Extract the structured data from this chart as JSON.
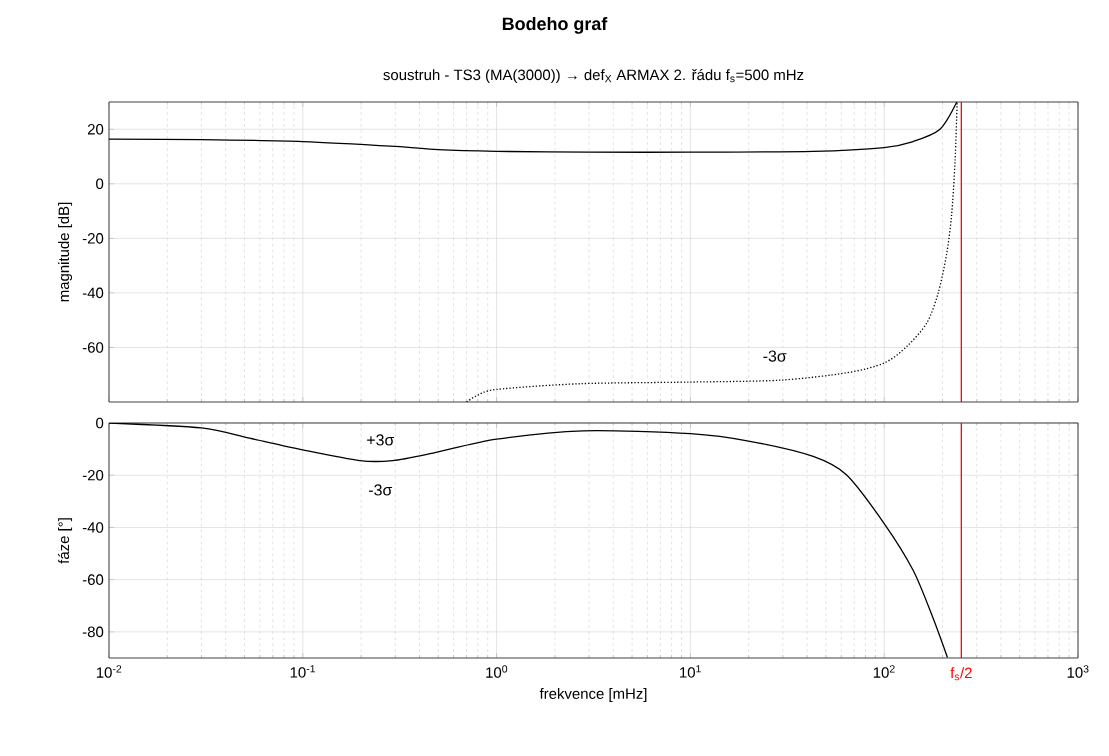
{
  "chart_data": [
    {
      "type": "line",
      "title": "**Bodeho graf**",
      "subtitle": "soustruh - TS3 (MA(3000)) → def$_{X}$ ARMAX 2. řádu f$_{s}$=500 mHz",
      "ylabel": "magnitude [dB]",
      "log": "x",
      "grid": true,
      "tick_labels": "y",
      "xlim": [
        0.01,
        1000
      ],
      "xticks": [
        {
          "value": 0.01,
          "label": null
        },
        {
          "value": 0.1,
          "label": null
        },
        {
          "value": 1,
          "label": null
        },
        {
          "value": 10,
          "label": null
        },
        {
          "value": 100,
          "label": null
        },
        {
          "value": 1000,
          "label": null
        }
      ],
      "ylim": [
        -80,
        30
      ],
      "yticks": [
        -60,
        -40,
        -20,
        0,
        20
      ],
      "ref_lines": [
        {
          "axis": "x",
          "value": 250,
          "color": "#ff0000"
        }
      ],
      "annotations": [
        "-3σ"
      ],
      "series": [
        {
          "color": "#000000",
          "line_style": "solid",
          "x": [
            0.01,
            0.03,
            0.1,
            0.3,
            0.5,
            1,
            3,
            10,
            43,
            100,
            141,
            194,
            237
          ],
          "values": [
            16.4,
            16.2,
            15.5,
            13.7,
            12.5,
            11.9,
            11.6,
            11.6,
            11.9,
            13.3,
            15.5,
            20,
            30
          ]
        },
        {
          "color": "#000000",
          "line_style": "dotted",
          "x": [
            0.7,
            0.79,
            1,
            2.7,
            10,
            29,
            64,
            100,
            131,
            166,
            190,
            210,
            223,
            232,
            238
          ],
          "values": [
            -80,
            -77.7,
            -75.4,
            -73.3,
            -72.7,
            -72,
            -69.3,
            -65.7,
            -59.6,
            -51,
            -40,
            -25.7,
            -11,
            8.2,
            30
          ]
        }
      ]
    },
    {
      "type": "line",
      "xlabel": "frekvence [mHz]",
      "ylabel": "fáze [°]",
      "log": "x",
      "grid": true,
      "xlim": [
        0.01,
        1000
      ],
      "xticks": [
        {
          "value": 0.01,
          "label": "10$^{-2}$"
        },
        {
          "value": 0.1,
          "label": "10$^{-1}$"
        },
        {
          "value": 1,
          "label": "10$^{0}$"
        },
        {
          "value": 10,
          "label": "10$^{1}$"
        },
        {
          "value": 100,
          "label": "10$^{2}$"
        },
        {
          "value": 1000,
          "label": "10$^{3}$"
        }
      ],
      "ylim": [
        -90,
        0
      ],
      "yticks": [
        -80,
        -60,
        -40,
        -20,
        0
      ],
      "ref_lines": [
        {
          "axis": "x",
          "value": 250,
          "color": "#ff0000",
          "label": "f$_{s}$/2"
        }
      ],
      "annotations": [
        "+3σ",
        "-3σ"
      ],
      "series": [
        {
          "color": "#000000",
          "line_style": "solid",
          "x": [
            0.01,
            0.03,
            0.053,
            0.1,
            0.197,
            0.29,
            0.47,
            1,
            2.8,
            10,
            20.6,
            43,
            64,
            100,
            141,
            178,
            212
          ],
          "values": [
            0,
            -1.9,
            -5.8,
            -10.3,
            -14.4,
            -14.4,
            -11.5,
            -6.2,
            -3,
            -4.1,
            -7.1,
            -12.8,
            -19.9,
            -38.5,
            -56.4,
            -74.4,
            -89.8
          ]
        }
      ]
    }
  ]
}
